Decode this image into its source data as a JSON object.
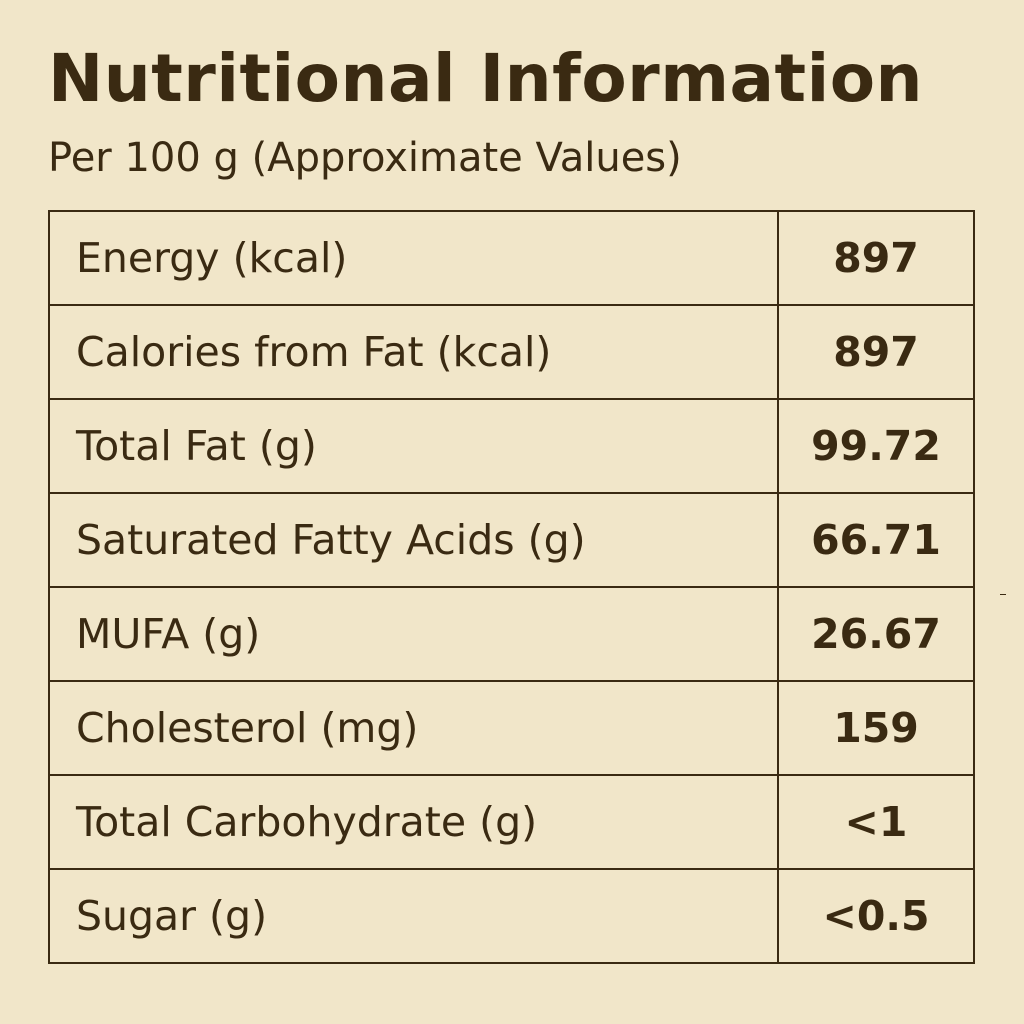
{
  "header": {
    "title": "Nutritional Information",
    "subtitle": "Per 100 g (Approximate Values)"
  },
  "rows": [
    {
      "label": "Energy (kcal)",
      "value": "897"
    },
    {
      "label": "Calories from Fat (kcal)",
      "value": "897"
    },
    {
      "label": "Total Fat (g)",
      "value": "99.72"
    },
    {
      "label": "Saturated Fatty Acids (g)",
      "value": "66.71"
    },
    {
      "label": "MUFA (g)",
      "value": "26.67"
    },
    {
      "label": "Cholesterol (mg)",
      "value": "159"
    },
    {
      "label": "Total Carbohydrate (g)",
      "value": "<1"
    },
    {
      "label": "Sugar (g)",
      "value": "<0.5"
    }
  ],
  "colors": {
    "background": "#f1e6c9",
    "text": "#3a2a12",
    "border": "#3a2a12"
  }
}
